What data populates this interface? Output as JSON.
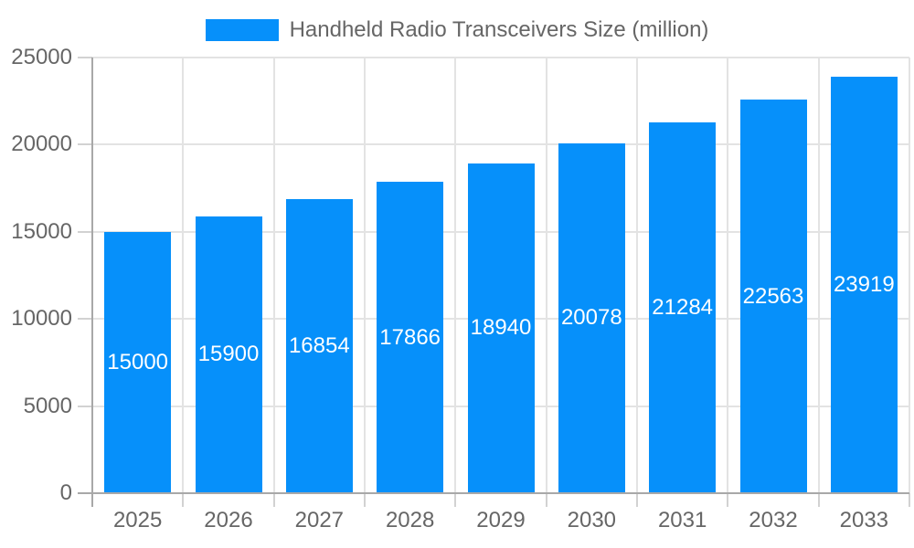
{
  "chart": {
    "legend": {
      "label": "Handheld Radio Transceivers Size (million)"
    }
  },
  "chart_data": {
    "type": "bar",
    "title": "Handheld Radio Transceivers Size (million)",
    "legend_position": "top",
    "categories": [
      "2025",
      "2026",
      "2027",
      "2028",
      "2029",
      "2030",
      "2031",
      "2032",
      "2033"
    ],
    "series": [
      {
        "name": "Handheld Radio Transceivers Size (million)",
        "values": [
          15000,
          15900,
          16854,
          17866,
          18940,
          20078,
          21284,
          22563,
          23919
        ]
      }
    ],
    "value_labels": [
      "15000",
      "15900",
      "16854",
      "17866",
      "18940",
      "20078",
      "21284",
      "22563",
      "23919"
    ],
    "xlabel": "",
    "ylabel": "",
    "ylim": [
      0,
      25000
    ],
    "yticks": [
      0,
      5000,
      10000,
      15000,
      20000,
      25000
    ],
    "ytick_labels": [
      "0",
      "5000",
      "10000",
      "15000",
      "20000",
      "25000"
    ],
    "grid": true,
    "colors": {
      "bar": "#0690fa",
      "value_label": "#ffffff",
      "axis_text": "#666666",
      "axis_line": "#a8a8a8",
      "gridline": "#e3e3e3",
      "tick": "#d2d2d2",
      "background": "#ffffff"
    }
  }
}
